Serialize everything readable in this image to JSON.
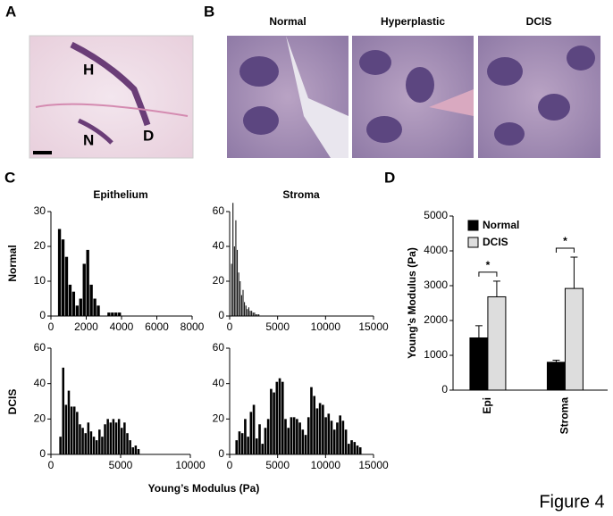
{
  "figure_label": "Figure 4",
  "panels": {
    "a": {
      "label": "A",
      "image_labels": [
        "H",
        "N",
        "D"
      ]
    },
    "b": {
      "label": "B",
      "titles": [
        "Normal",
        "Hyperplastic",
        "DCIS"
      ]
    },
    "c": {
      "label": "C",
      "column_titles": [
        "Epithelium",
        "Stroma"
      ],
      "row_labels": [
        "Normal",
        "DCIS"
      ],
      "xlabel": "Young’s Modulus (Pa)"
    },
    "d": {
      "label": "D"
    }
  },
  "chart_data": [
    {
      "type": "histogram",
      "color": "#000000",
      "bins": [
        400,
        600,
        800,
        1000,
        1200,
        1400,
        1600,
        1800,
        2000,
        2200,
        2400,
        2600,
        2800,
        3000,
        3200,
        3400,
        3600,
        3800,
        4000
      ],
      "counts": [
        25,
        22,
        17,
        9,
        7,
        3,
        5,
        15,
        19,
        9,
        5,
        3,
        0,
        0,
        1,
        1,
        1,
        1
      ],
      "xlim": [
        0,
        8000
      ],
      "xticks": [
        0,
        2000,
        4000,
        6000,
        8000
      ],
      "ylim": [
        0,
        30
      ],
      "yticks": [
        0,
        10,
        20,
        30
      ]
    },
    {
      "type": "histogram",
      "color": "#000000",
      "bins": [
        150,
        300,
        450,
        600,
        750,
        900,
        1050,
        1200,
        1350,
        1500,
        1650,
        1800,
        1950,
        2100,
        2250,
        2400,
        2550,
        2700,
        2850,
        3000,
        3150
      ],
      "counts": [
        30,
        65,
        40,
        55,
        38,
        25,
        20,
        12,
        15,
        8,
        6,
        4,
        5,
        3,
        3,
        2,
        2,
        1,
        1,
        1
      ],
      "xlim": [
        0,
        15000
      ],
      "xticks": [
        0,
        5000,
        10000,
        15000
      ],
      "ylim": [
        0,
        60
      ],
      "yticks": [
        0,
        20,
        40,
        60
      ]
    },
    {
      "type": "histogram",
      "color": "#000000",
      "bins": [
        600,
        800,
        1000,
        1200,
        1400,
        1600,
        1800,
        2000,
        2200,
        2400,
        2600,
        2800,
        3000,
        3200,
        3400,
        3600,
        3800,
        4000,
        4200,
        4400,
        4600,
        4800,
        5000,
        5200,
        5400,
        5600,
        5800,
        6000,
        6200,
        6400
      ],
      "counts": [
        10,
        49,
        28,
        36,
        27,
        27,
        24,
        17,
        15,
        12,
        18,
        13,
        10,
        8,
        14,
        10,
        17,
        20,
        18,
        20,
        18,
        20,
        15,
        18,
        12,
        8,
        4,
        5,
        3
      ],
      "xlim": [
        0,
        10000
      ],
      "xticks": [
        0,
        5000,
        10000
      ],
      "ylim": [
        0,
        60
      ],
      "yticks": [
        0,
        20,
        40,
        60
      ]
    },
    {
      "type": "histogram",
      "color": "#000000",
      "bins": [
        600,
        900,
        1200,
        1500,
        1800,
        2100,
        2400,
        2700,
        3000,
        3300,
        3600,
        3900,
        4200,
        4500,
        4800,
        5100,
        5400,
        5700,
        6000,
        6300,
        6600,
        6900,
        7200,
        7500,
        7800,
        8100,
        8400,
        8700,
        9000,
        9300,
        9600,
        9900,
        10200,
        10500,
        10800,
        11100,
        11400,
        11700,
        12000,
        12300,
        12600,
        12900,
        13200,
        13500,
        13800
      ],
      "counts": [
        8,
        13,
        12,
        20,
        10,
        24,
        28,
        9,
        17,
        6,
        15,
        20,
        37,
        35,
        41,
        43,
        41,
        20,
        15,
        21,
        21,
        20,
        18,
        14,
        11,
        21,
        38,
        33,
        26,
        29,
        28,
        21,
        23,
        19,
        14,
        18,
        22,
        19,
        14,
        6,
        8,
        7,
        5,
        4
      ],
      "xlim": [
        0,
        15000
      ],
      "xticks": [
        0,
        5000,
        10000,
        15000
      ],
      "ylim": [
        0,
        60
      ],
      "yticks": [
        0,
        20,
        40,
        60
      ]
    },
    {
      "type": "bar",
      "ylabel": "Young’s Modulus (Pa)",
      "categories": [
        "Epi",
        "Stroma"
      ],
      "series": [
        {
          "name": "Normal",
          "color": "#000000",
          "values": [
            1500,
            800
          ],
          "errors": [
            350,
            60
          ]
        },
        {
          "name": "DCIS",
          "color": "#dddddd",
          "values": [
            2680,
            2920
          ],
          "errors": [
            450,
            900
          ]
        }
      ],
      "ylim": [
        0,
        5000
      ],
      "yticks": [
        0,
        1000,
        2000,
        3000,
        4000,
        5000
      ],
      "annotations": [
        "*",
        "*"
      ],
      "legend": "upper left"
    }
  ]
}
